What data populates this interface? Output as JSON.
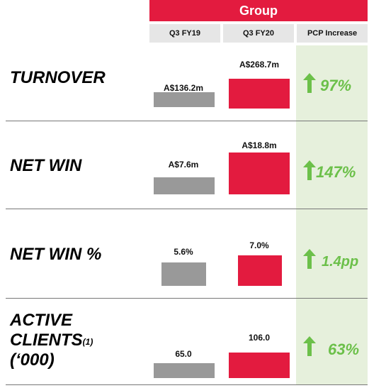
{
  "header": {
    "group": "Group",
    "col_fy19": "Q3 FY19",
    "col_fy20": "Q3 FY20",
    "col_pcp": "PCP Increase"
  },
  "colors": {
    "fy19": "#999999",
    "fy20": "#e31b3f",
    "increase": "#6cc04a",
    "pcp_bg": "#e6f0dc"
  },
  "rows": [
    {
      "label_lines": [
        "TURNOVER"
      ],
      "fy19_label": "A$136.2m",
      "fy20_label": "A$268.7m",
      "increase": "97%"
    },
    {
      "label_lines": [
        "NET WIN"
      ],
      "fy19_label": "A$7.6m",
      "fy20_label": "A$18.8m",
      "increase": "147%"
    },
    {
      "label_lines": [
        "NET WIN %"
      ],
      "fy19_label": "5.6%",
      "fy20_label": "7.0%",
      "increase": "1.4pp"
    },
    {
      "label_lines": [
        "ACTIVE",
        "CLIENTS",
        "(‘000)"
      ],
      "footnote": "(1)",
      "fy19_label": "65.0",
      "fy20_label": "106.0",
      "increase": "63%"
    }
  ],
  "chart_data": {
    "type": "bar",
    "categories": [
      "TURNOVER",
      "NET WIN",
      "NET WIN %",
      "ACTIVE CLIENTS (‘000)"
    ],
    "series": [
      {
        "name": "Q3 FY19",
        "values": [
          136.2,
          7.6,
          5.6,
          65.0
        ]
      },
      {
        "name": "Q3 FY20",
        "values": [
          268.7,
          18.8,
          7.0,
          106.0
        ]
      }
    ],
    "pcp_increase": [
      "97%",
      "147%",
      "1.4pp",
      "63%"
    ]
  }
}
